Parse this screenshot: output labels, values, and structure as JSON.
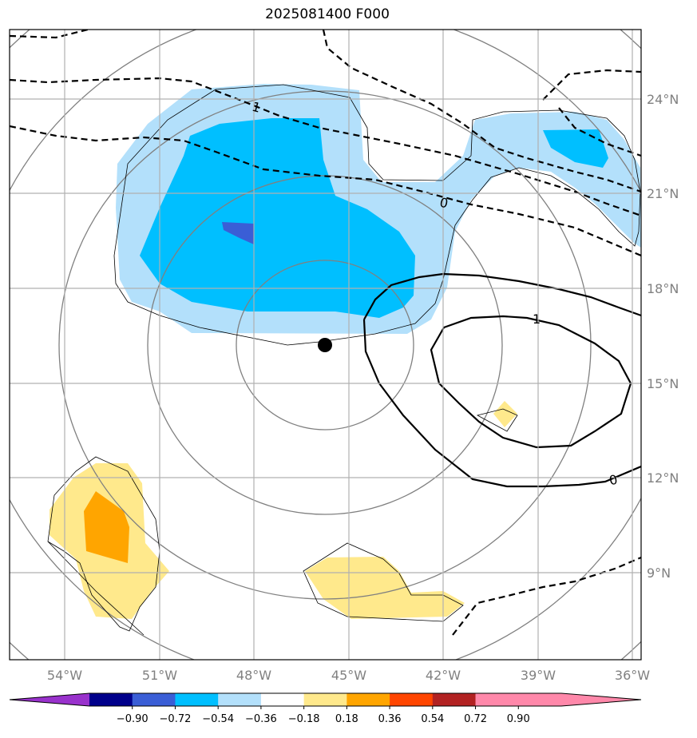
{
  "title": "2025081400 F000",
  "map": {
    "lon_range": [
      -55.5,
      -35.8
    ],
    "lat_range": [
      6.4,
      26.3
    ],
    "lon_ticks": [
      "54°W",
      "51°W",
      "48°W",
      "45°W",
      "42°W",
      "39°W",
      "36°W"
    ],
    "lat_ticks": [
      "24°N",
      "21°N",
      "18°N",
      "15°N",
      "12°N",
      "9°N"
    ],
    "center_marker": {
      "lon": -45.75,
      "lat": 16.2
    },
    "contour_labels": [
      "1",
      "0",
      "1",
      "0"
    ],
    "colors": {
      "fill_light_blue": "#b3e0fb",
      "fill_blue": "#00bfff",
      "fill_dark_blue": "#3a5ed6",
      "fill_light_yellow": "#ffe98c",
      "fill_orange": "#ffa500",
      "range_rings": "#808080",
      "grid": "#b0b0b0"
    }
  },
  "colorbar": {
    "labels": [
      "−0.90",
      "−0.72",
      "−0.54",
      "−0.36",
      "−0.18",
      "0.18",
      "0.36",
      "0.54",
      "0.72",
      "0.90"
    ],
    "colors": [
      "#9932cc",
      "#00008b",
      "#3a5ed6",
      "#00bfff",
      "#b3e0fb",
      "#ffffff",
      "#ffe98c",
      "#ffa500",
      "#ff4500",
      "#b22222",
      "#ff88aa",
      "#ff88aa"
    ]
  }
}
